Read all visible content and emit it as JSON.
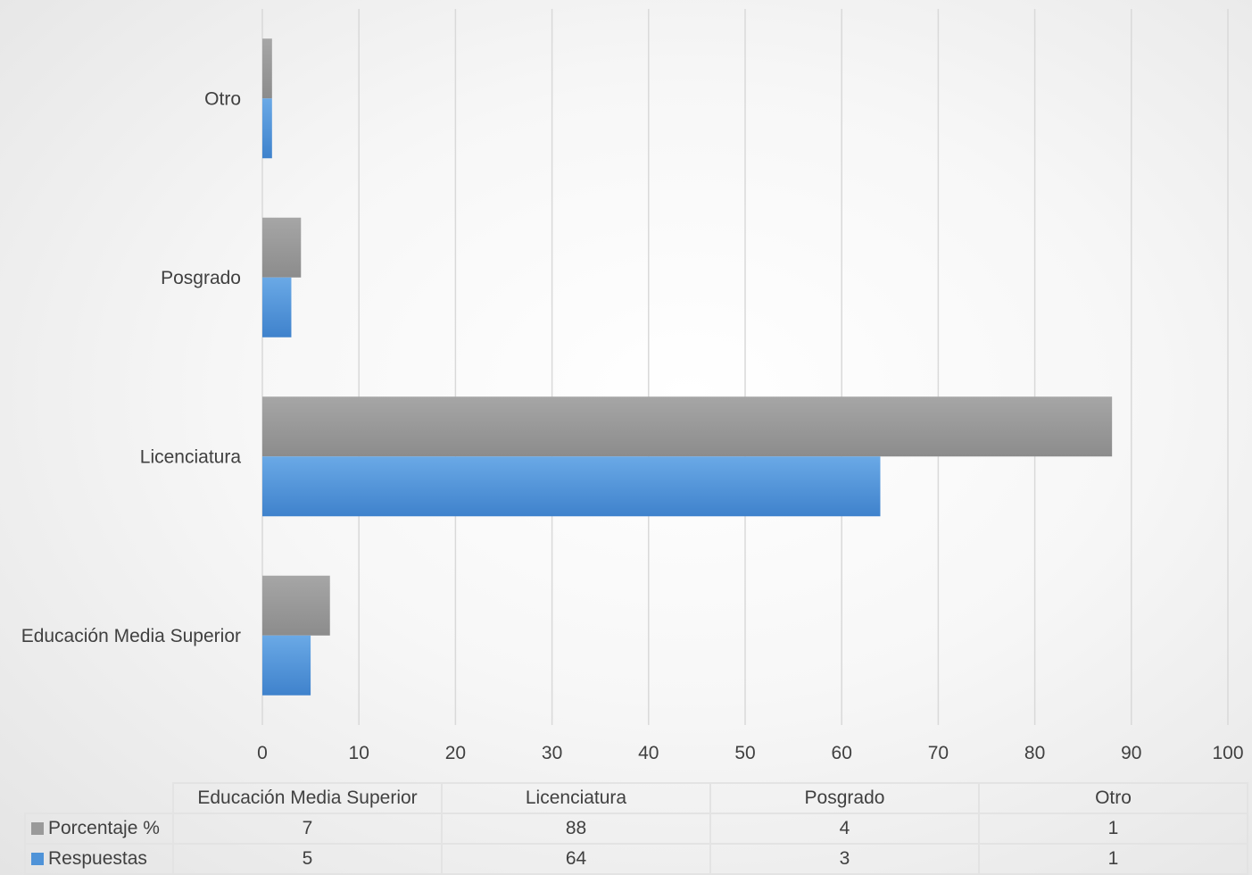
{
  "chart_data": {
    "type": "bar",
    "orientation": "horizontal",
    "categories": [
      "Educación Media Superior",
      "Licenciatura",
      "Posgrado",
      "Otro"
    ],
    "series": [
      {
        "name": "Porcentaje %",
        "values": [
          7,
          88,
          4,
          1
        ],
        "color": "#9a9a9a"
      },
      {
        "name": "Respuestas",
        "values": [
          5,
          64,
          3,
          1
        ],
        "color": "#4f93d8"
      }
    ],
    "xlim": [
      0,
      100
    ],
    "xticks": [
      0,
      10,
      20,
      30,
      40,
      50,
      60,
      70,
      80,
      90,
      100
    ],
    "grid": true,
    "legend": "data-table-below"
  }
}
